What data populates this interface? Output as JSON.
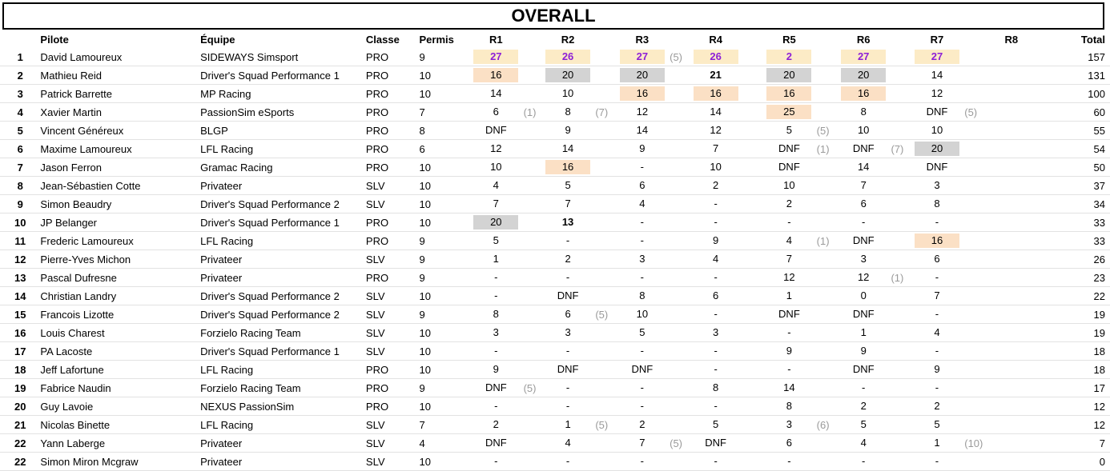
{
  "title": "OVERALL",
  "headers": {
    "pilote": "Pilote",
    "equipe": "Équipe",
    "classe": "Classe",
    "permis": "Permis",
    "races": [
      "R1",
      "R2",
      "R3",
      "R4",
      "R5",
      "R6",
      "R7",
      "R8"
    ],
    "total": "Total"
  },
  "rows": [
    {
      "rank": "1",
      "pilote": "David Lamoureux",
      "equipe": "SIDEWAYS Simsport",
      "classe": "PRO",
      "permis": "9",
      "results": [
        "27",
        "26",
        "27",
        "26",
        "2",
        "27",
        "27",
        ""
      ],
      "styles": [
        "gold",
        "gold",
        "gold",
        "gold",
        "gold",
        "gold",
        "gold",
        ""
      ],
      "penalties": [
        "",
        "",
        "(5)",
        "",
        "",
        "",
        "",
        ""
      ],
      "total": "157"
    },
    {
      "rank": "2",
      "pilote": "Mathieu Reid",
      "equipe": "Driver's Squad Performance 1",
      "classe": "PRO",
      "permis": "10",
      "results": [
        "16",
        "20",
        "20",
        "21",
        "20",
        "20",
        "14",
        ""
      ],
      "styles": [
        "bronze",
        "silver",
        "silver",
        "bold",
        "silver",
        "silver",
        "",
        ""
      ],
      "penalties": [
        "",
        "",
        "",
        "",
        "",
        "",
        "",
        ""
      ],
      "total": "131"
    },
    {
      "rank": "3",
      "pilote": "Patrick Barrette",
      "equipe": "MP Racing",
      "classe": "PRO",
      "permis": "10",
      "results": [
        "14",
        "10",
        "16",
        "16",
        "16",
        "16",
        "12",
        ""
      ],
      "styles": [
        "",
        "",
        "bronze",
        "bronze",
        "bronze",
        "bronze",
        "",
        ""
      ],
      "penalties": [
        "",
        "",
        "",
        "",
        "",
        "",
        "",
        ""
      ],
      "total": "100"
    },
    {
      "rank": "4",
      "pilote": "Xavier Martin",
      "equipe": "PassionSim eSports",
      "classe": "PRO",
      "permis": "7",
      "results": [
        "6",
        "8",
        "12",
        "14",
        "25",
        "8",
        "DNF",
        ""
      ],
      "styles": [
        "",
        "",
        "",
        "",
        "bronze",
        "",
        "",
        ""
      ],
      "penalties": [
        "(1)",
        "(7)",
        "",
        "",
        "",
        "",
        "(5)",
        ""
      ],
      "total": "60"
    },
    {
      "rank": "5",
      "pilote": "Vincent Généreux",
      "equipe": "BLGP",
      "classe": "PRO",
      "permis": "8",
      "results": [
        "DNF",
        "9",
        "14",
        "12",
        "5",
        "10",
        "10",
        ""
      ],
      "styles": [
        "",
        "",
        "",
        "",
        "",
        "",
        "",
        ""
      ],
      "penalties": [
        "",
        "",
        "",
        "",
        "(5)",
        "",
        "",
        ""
      ],
      "total": "55"
    },
    {
      "rank": "6",
      "pilote": "Maxime Lamoureux",
      "equipe": "LFL Racing",
      "classe": "PRO",
      "permis": "6",
      "results": [
        "12",
        "14",
        "9",
        "7",
        "DNF",
        "DNF",
        "20",
        ""
      ],
      "styles": [
        "",
        "",
        "",
        "",
        "",
        "",
        "silver",
        ""
      ],
      "penalties": [
        "",
        "",
        "",
        "",
        "(1)",
        "(7)",
        "",
        ""
      ],
      "total": "54"
    },
    {
      "rank": "7",
      "pilote": "Jason Ferron",
      "equipe": "Gramac Racing",
      "classe": "PRO",
      "permis": "10",
      "results": [
        "10",
        "16",
        "-",
        "10",
        "DNF",
        "14",
        "DNF",
        ""
      ],
      "styles": [
        "",
        "bronze",
        "",
        "",
        "",
        "",
        "",
        ""
      ],
      "penalties": [
        "",
        "",
        "",
        "",
        "",
        "",
        "",
        ""
      ],
      "total": "50"
    },
    {
      "rank": "8",
      "pilote": "Jean-Sébastien Cotte",
      "equipe": "Privateer",
      "classe": "SLV",
      "permis": "10",
      "results": [
        "4",
        "5",
        "6",
        "2",
        "10",
        "7",
        "3",
        ""
      ],
      "styles": [
        "",
        "",
        "",
        "",
        "",
        "",
        "",
        ""
      ],
      "penalties": [
        "",
        "",
        "",
        "",
        "",
        "",
        "",
        ""
      ],
      "total": "37"
    },
    {
      "rank": "9",
      "pilote": "Simon Beaudry",
      "equipe": "Driver's Squad Performance 2",
      "classe": "SLV",
      "permis": "10",
      "results": [
        "7",
        "7",
        "4",
        "-",
        "2",
        "6",
        "8",
        ""
      ],
      "styles": [
        "",
        "",
        "",
        "",
        "",
        "",
        "",
        ""
      ],
      "penalties": [
        "",
        "",
        "",
        "",
        "",
        "",
        "",
        ""
      ],
      "total": "34"
    },
    {
      "rank": "10",
      "pilote": "JP Belanger",
      "equipe": "Driver's Squad Performance 1",
      "classe": "PRO",
      "permis": "10",
      "results": [
        "20",
        "13",
        "-",
        "-",
        "-",
        "-",
        "-",
        ""
      ],
      "styles": [
        "silver",
        "bold",
        "",
        "",
        "",
        "",
        "",
        ""
      ],
      "penalties": [
        "",
        "",
        "",
        "",
        "",
        "",
        "",
        ""
      ],
      "total": "33"
    },
    {
      "rank": "11",
      "pilote": "Frederic Lamoureux",
      "equipe": "LFL Racing",
      "classe": "PRO",
      "permis": "9",
      "results": [
        "5",
        "-",
        "-",
        "9",
        "4",
        "DNF",
        "16",
        ""
      ],
      "styles": [
        "",
        "",
        "",
        "",
        "",
        "",
        "bronze",
        ""
      ],
      "penalties": [
        "",
        "",
        "",
        "",
        "(1)",
        "",
        "",
        ""
      ],
      "total": "33"
    },
    {
      "rank": "12",
      "pilote": "Pierre-Yves Michon",
      "equipe": "Privateer",
      "classe": "SLV",
      "permis": "9",
      "results": [
        "1",
        "2",
        "3",
        "4",
        "7",
        "3",
        "6",
        ""
      ],
      "styles": [
        "",
        "",
        "",
        "",
        "",
        "",
        "",
        ""
      ],
      "penalties": [
        "",
        "",
        "",
        "",
        "",
        "",
        "",
        ""
      ],
      "total": "26"
    },
    {
      "rank": "13",
      "pilote": "Pascal Dufresne",
      "equipe": "Privateer",
      "classe": "PRO",
      "permis": "9",
      "results": [
        "-",
        "-",
        "-",
        "-",
        "12",
        "12",
        "-",
        ""
      ],
      "styles": [
        "",
        "",
        "",
        "",
        "",
        "",
        "",
        ""
      ],
      "penalties": [
        "",
        "",
        "",
        "",
        "",
        "(1)",
        "",
        ""
      ],
      "total": "23"
    },
    {
      "rank": "14",
      "pilote": "Christian Landry",
      "equipe": "Driver's Squad Performance 2",
      "classe": "SLV",
      "permis": "10",
      "results": [
        "-",
        "DNF",
        "8",
        "6",
        "1",
        "0",
        "7",
        ""
      ],
      "styles": [
        "",
        "",
        "",
        "",
        "",
        "",
        "",
        ""
      ],
      "penalties": [
        "",
        "",
        "",
        "",
        "",
        "",
        "",
        ""
      ],
      "total": "22"
    },
    {
      "rank": "15",
      "pilote": "Francois Lizotte",
      "equipe": "Driver's Squad Performance 2",
      "classe": "SLV",
      "permis": "9",
      "results": [
        "8",
        "6",
        "10",
        "-",
        "DNF",
        "DNF",
        "-",
        ""
      ],
      "styles": [
        "",
        "",
        "",
        "",
        "",
        "",
        "",
        ""
      ],
      "penalties": [
        "",
        "(5)",
        "",
        "",
        "",
        "",
        "",
        ""
      ],
      "total": "19"
    },
    {
      "rank": "16",
      "pilote": "Louis Charest",
      "equipe": "Forzielo Racing Team",
      "classe": "SLV",
      "permis": "10",
      "results": [
        "3",
        "3",
        "5",
        "3",
        "-",
        "1",
        "4",
        ""
      ],
      "styles": [
        "",
        "",
        "",
        "",
        "",
        "",
        "",
        ""
      ],
      "penalties": [
        "",
        "",
        "",
        "",
        "",
        "",
        "",
        ""
      ],
      "total": "19"
    },
    {
      "rank": "17",
      "pilote": "PA Lacoste",
      "equipe": "Driver's Squad Performance 1",
      "classe": "SLV",
      "permis": "10",
      "results": [
        "-",
        "-",
        "-",
        "-",
        "9",
        "9",
        "-",
        ""
      ],
      "styles": [
        "",
        "",
        "",
        "",
        "",
        "",
        "",
        ""
      ],
      "penalties": [
        "",
        "",
        "",
        "",
        "",
        "",
        "",
        ""
      ],
      "total": "18"
    },
    {
      "rank": "18",
      "pilote": "Jeff Lafortune",
      "equipe": "LFL Racing",
      "classe": "PRO",
      "permis": "10",
      "results": [
        "9",
        "DNF",
        "DNF",
        "-",
        "-",
        "DNF",
        "9",
        ""
      ],
      "styles": [
        "",
        "",
        "",
        "",
        "",
        "",
        "",
        ""
      ],
      "penalties": [
        "",
        "",
        "",
        "",
        "",
        "",
        "",
        ""
      ],
      "total": "18"
    },
    {
      "rank": "19",
      "pilote": "Fabrice Naudin",
      "equipe": "Forzielo Racing Team",
      "classe": "PRO",
      "permis": "9",
      "results": [
        "DNF",
        "-",
        "-",
        "8",
        "14",
        "-",
        "-",
        ""
      ],
      "styles": [
        "",
        "",
        "",
        "",
        "",
        "",
        "",
        ""
      ],
      "penalties": [
        "(5)",
        "",
        "",
        "",
        "",
        "",
        "",
        ""
      ],
      "total": "17"
    },
    {
      "rank": "20",
      "pilote": "Guy Lavoie",
      "equipe": "NEXUS PassionSim",
      "classe": "PRO",
      "permis": "10",
      "results": [
        "-",
        "-",
        "-",
        "-",
        "8",
        "2",
        "2",
        ""
      ],
      "styles": [
        "",
        "",
        "",
        "",
        "",
        "",
        "",
        ""
      ],
      "penalties": [
        "",
        "",
        "",
        "",
        "",
        "",
        "",
        ""
      ],
      "total": "12"
    },
    {
      "rank": "21",
      "pilote": "Nicolas Binette",
      "equipe": "LFL Racing",
      "classe": "SLV",
      "permis": "7",
      "results": [
        "2",
        "1",
        "2",
        "5",
        "3",
        "5",
        "5",
        ""
      ],
      "styles": [
        "",
        "",
        "",
        "",
        "",
        "",
        "",
        ""
      ],
      "penalties": [
        "",
        "(5)",
        "",
        "",
        "(6)",
        "",
        "",
        ""
      ],
      "total": "12"
    },
    {
      "rank": "22",
      "pilote": "Yann Laberge",
      "equipe": "Privateer",
      "classe": "SLV",
      "permis": "4",
      "results": [
        "DNF",
        "4",
        "7",
        "DNF",
        "6",
        "4",
        "1",
        ""
      ],
      "styles": [
        "",
        "",
        "",
        "",
        "",
        "",
        "",
        ""
      ],
      "penalties": [
        "",
        "",
        "(5)",
        "",
        "",
        "",
        "(10)",
        ""
      ],
      "total": "7"
    },
    {
      "rank": "22",
      "pilote": "Simon Miron Mcgraw",
      "equipe": "Privateer",
      "classe": "SLV",
      "permis": "10",
      "results": [
        "-",
        "-",
        "-",
        "-",
        "-",
        "-",
        "-",
        ""
      ],
      "styles": [
        "",
        "",
        "",
        "",
        "",
        "",
        "",
        ""
      ],
      "penalties": [
        "",
        "",
        "",
        "",
        "",
        "",
        "",
        ""
      ],
      "total": "0"
    }
  ]
}
